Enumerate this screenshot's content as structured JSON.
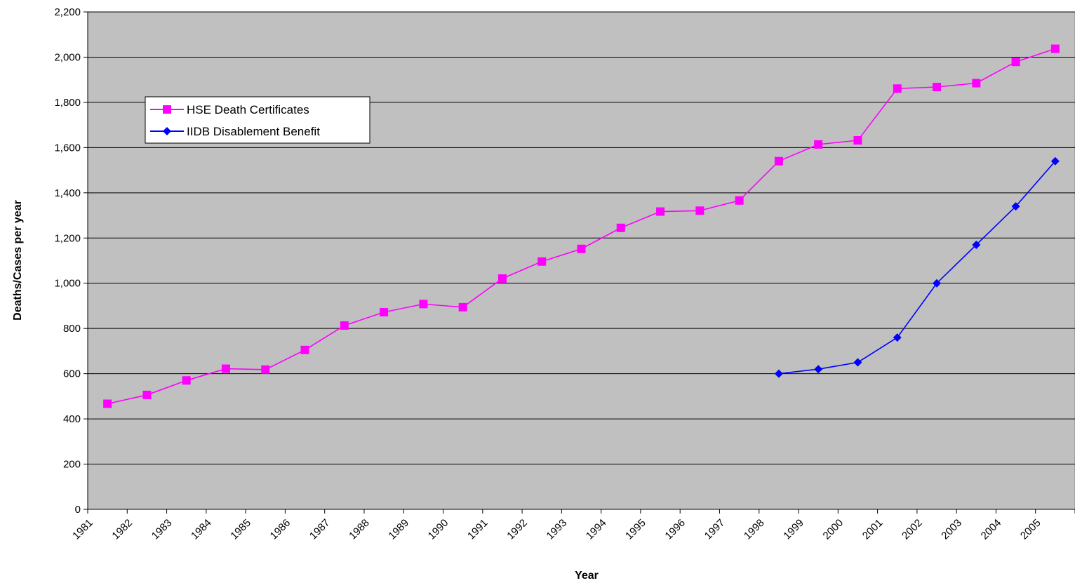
{
  "chart_data": {
    "type": "line",
    "title": "",
    "xlabel": "Year",
    "ylabel": "Deaths/Cases per year",
    "ylim": [
      0,
      2200
    ],
    "yticks": [
      0,
      200,
      400,
      600,
      800,
      1000,
      1200,
      1400,
      1600,
      1800,
      2000,
      2200
    ],
    "ytick_labels": [
      "0",
      "200",
      "400",
      "600",
      "800",
      "1,000",
      "1,200",
      "1,400",
      "1,600",
      "1,800",
      "2,000",
      "2,200"
    ],
    "categories": [
      "1981",
      "1982",
      "1983",
      "1984",
      "1985",
      "1986",
      "1987",
      "1988",
      "1989",
      "1990",
      "1991",
      "1992",
      "1993",
      "1994",
      "1995",
      "1996",
      "1997",
      "1998",
      "1999",
      "2000",
      "2001",
      "2002",
      "2003",
      "2004",
      "2005"
    ],
    "grid": true,
    "legend_position": "upper-left",
    "plot_background": "#c0c0c0",
    "series": [
      {
        "name": "HSE Death Certificates",
        "color": "#ff00ff",
        "marker": "square",
        "values": [
          467,
          506,
          570,
          622,
          618,
          705,
          813,
          872,
          908,
          894,
          1021,
          1096,
          1152,
          1245,
          1317,
          1321,
          1366,
          1540,
          1614,
          1632,
          1861,
          1868,
          1885,
          1979,
          2037
        ]
      },
      {
        "name": "IIDB Disablement Benefit",
        "color": "#0000ff",
        "marker": "diamond",
        "values": [
          null,
          null,
          null,
          null,
          null,
          null,
          null,
          null,
          null,
          null,
          null,
          null,
          null,
          null,
          null,
          null,
          null,
          600,
          620,
          650,
          760,
          1000,
          1170,
          1340,
          1540
        ]
      }
    ]
  }
}
